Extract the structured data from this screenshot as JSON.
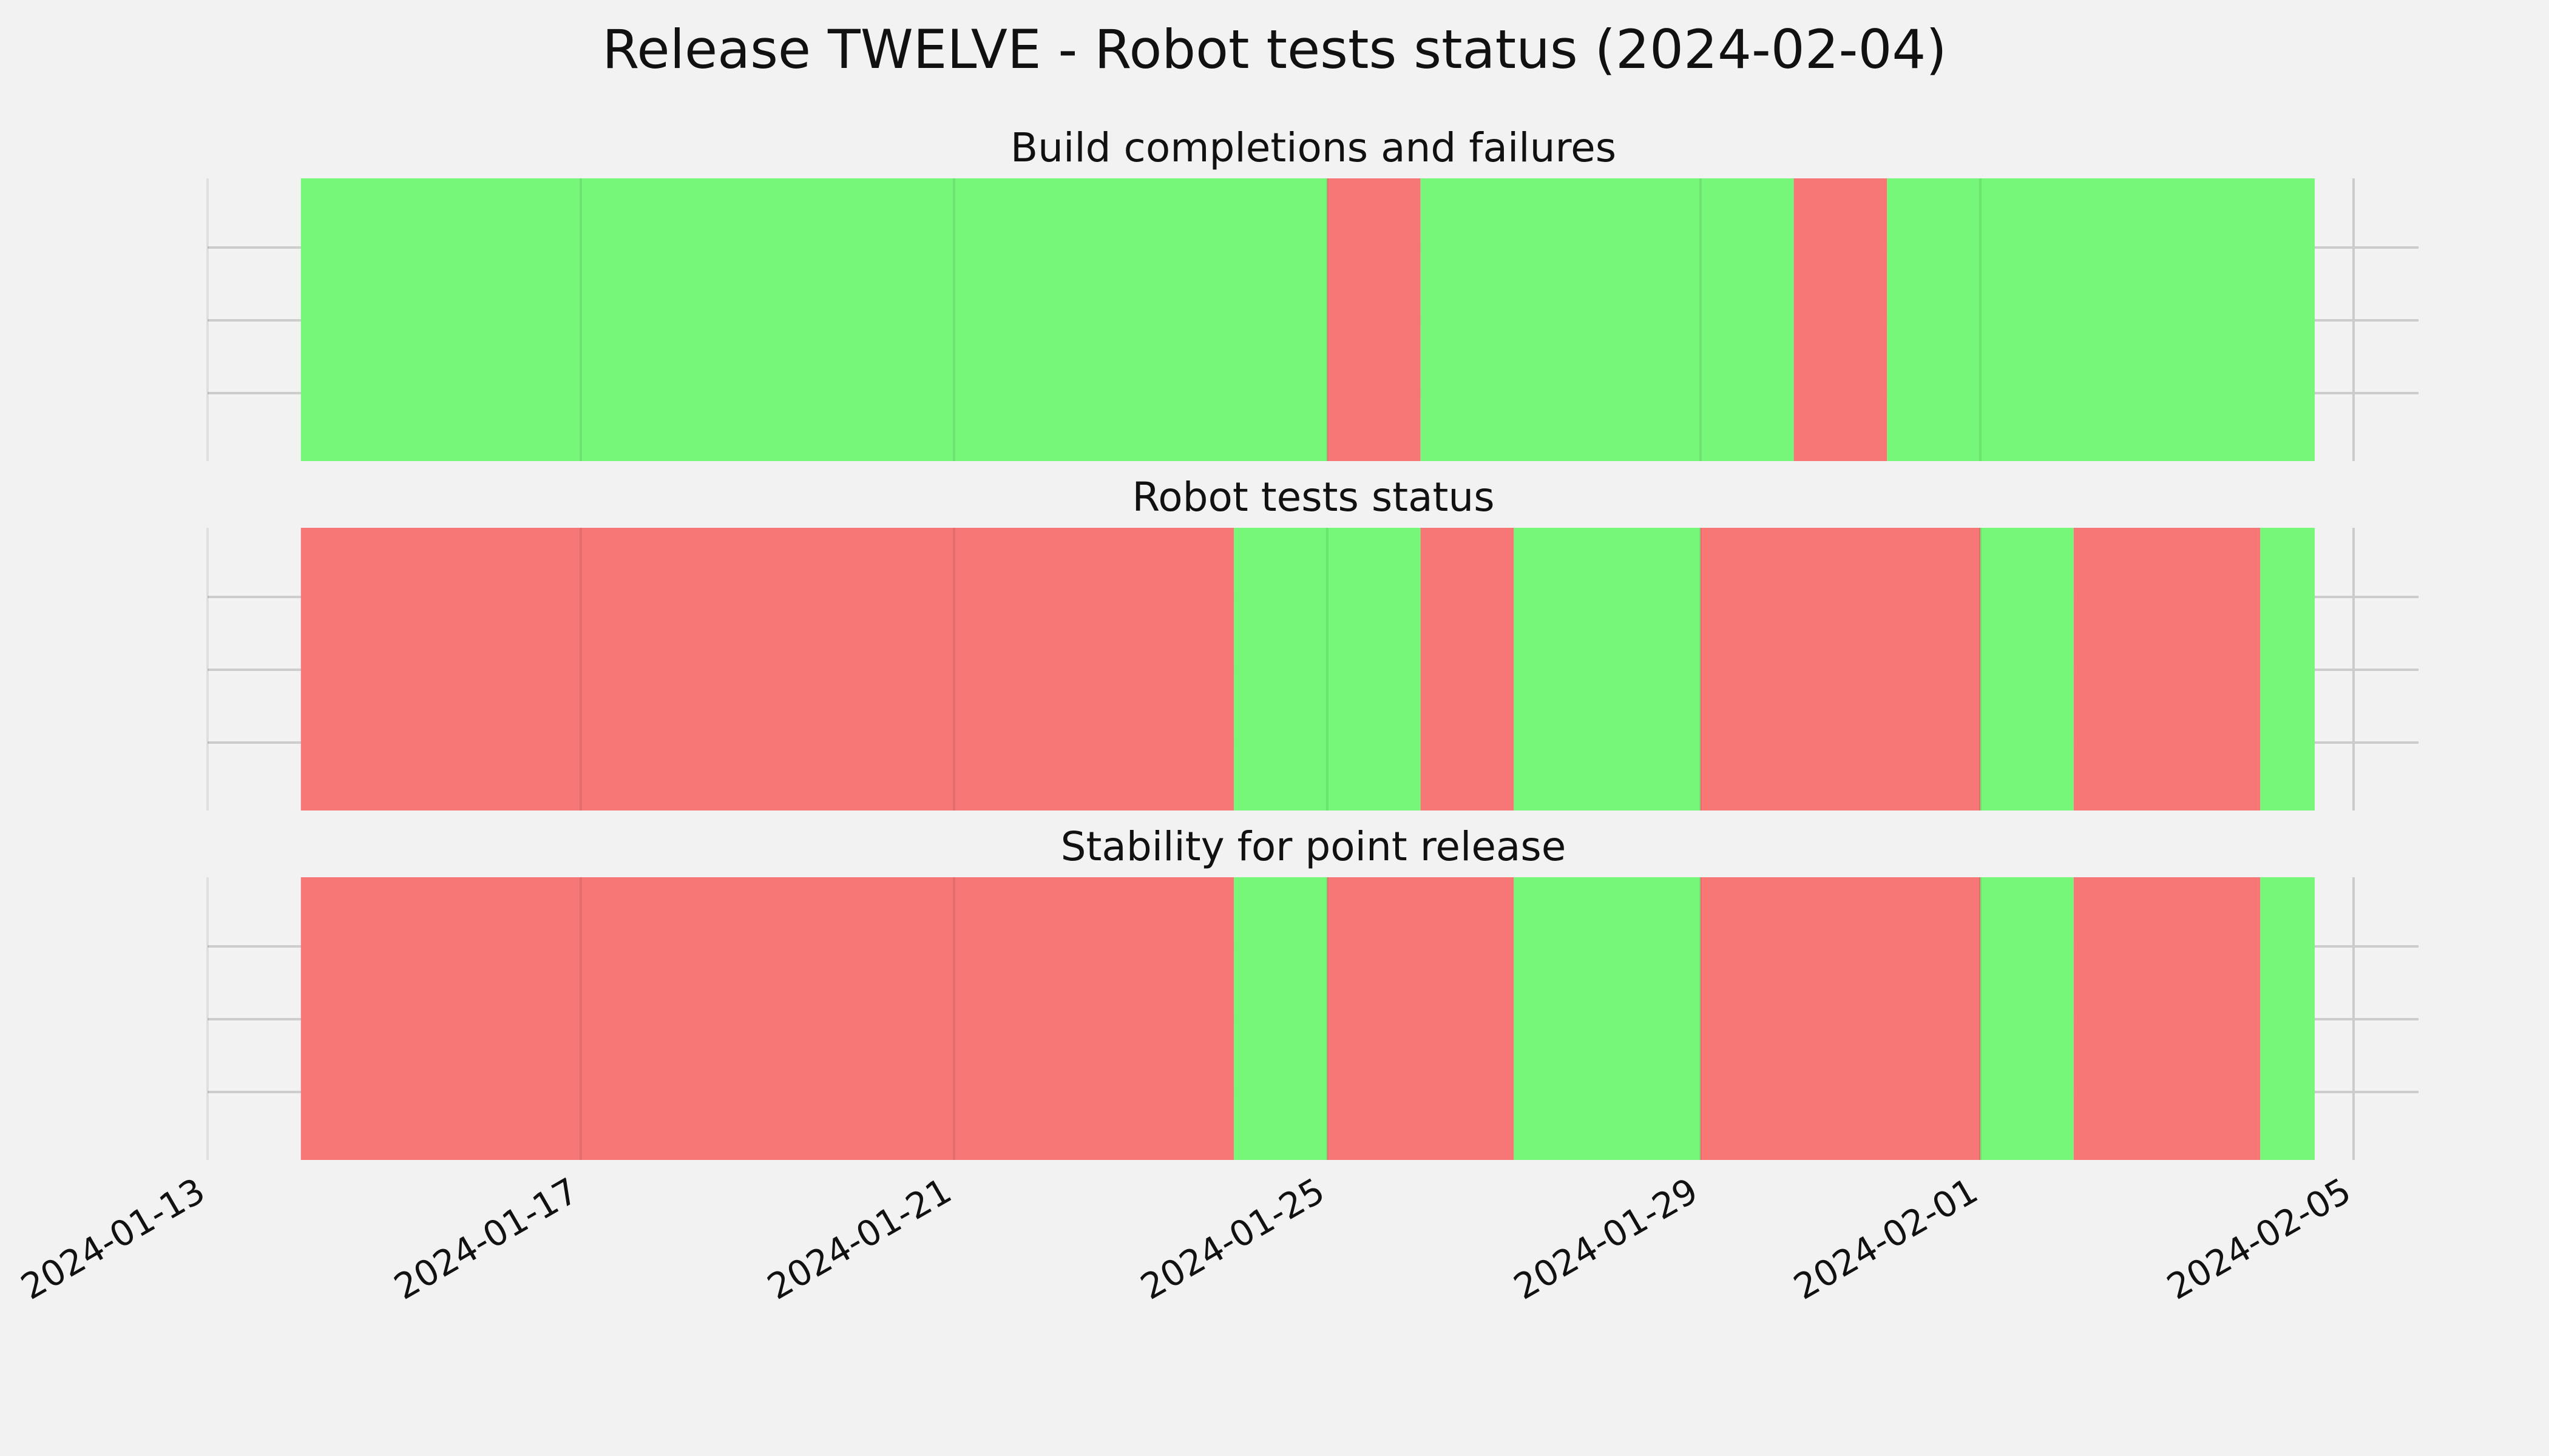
{
  "chart_data": {
    "type": "timeline",
    "title": "Release TWELVE - Robot tests status (2024-02-04)",
    "x_ticks": [
      "2024-01-13",
      "2024-01-17",
      "2024-01-21",
      "2024-01-25",
      "2024-01-29",
      "2024-02-01",
      "2024-02-05"
    ],
    "xlim": [
      "2024-01-13",
      "2024-02-05"
    ],
    "grid": true,
    "colors": {
      "pass": "#77f77a",
      "fail": "#f77777",
      "background": "#f2f2f2",
      "grid": "#cccccc"
    },
    "panels": [
      {
        "title": "Build completions and failures",
        "segments": [
          {
            "start": "2024-01-14",
            "end": "2024-01-25",
            "status": "pass"
          },
          {
            "start": "2024-01-25",
            "end": "2024-01-26",
            "status": "fail"
          },
          {
            "start": "2024-01-26",
            "end": "2024-01-30",
            "status": "pass"
          },
          {
            "start": "2024-01-30",
            "end": "2024-01-31",
            "status": "fail"
          },
          {
            "start": "2024-01-31",
            "end": "2024-02-04 14:00",
            "status": "pass"
          }
        ]
      },
      {
        "title": "Robot tests status",
        "segments": [
          {
            "start": "2024-01-14",
            "end": "2024-01-24",
            "status": "fail"
          },
          {
            "start": "2024-01-24",
            "end": "2024-01-26",
            "status": "pass"
          },
          {
            "start": "2024-01-26",
            "end": "2024-01-27",
            "status": "fail"
          },
          {
            "start": "2024-01-27",
            "end": "2024-01-29",
            "status": "pass"
          },
          {
            "start": "2024-01-29",
            "end": "2024-02-01",
            "status": "fail"
          },
          {
            "start": "2024-02-01",
            "end": "2024-02-02",
            "status": "pass"
          },
          {
            "start": "2024-02-02",
            "end": "2024-02-04",
            "status": "fail"
          },
          {
            "start": "2024-02-04",
            "end": "2024-02-04 14:00",
            "status": "pass"
          }
        ]
      },
      {
        "title": "Stability for point release",
        "segments": [
          {
            "start": "2024-01-14",
            "end": "2024-01-24",
            "status": "fail"
          },
          {
            "start": "2024-01-24",
            "end": "2024-01-25",
            "status": "pass"
          },
          {
            "start": "2024-01-25",
            "end": "2024-01-27",
            "status": "fail"
          },
          {
            "start": "2024-01-27",
            "end": "2024-01-29",
            "status": "pass"
          },
          {
            "start": "2024-01-29",
            "end": "2024-02-01",
            "status": "fail"
          },
          {
            "start": "2024-02-01",
            "end": "2024-02-02",
            "status": "pass"
          },
          {
            "start": "2024-02-02",
            "end": "2024-02-04",
            "status": "fail"
          },
          {
            "start": "2024-02-04",
            "end": "2024-02-04 14:00",
            "status": "pass"
          }
        ]
      }
    ]
  }
}
